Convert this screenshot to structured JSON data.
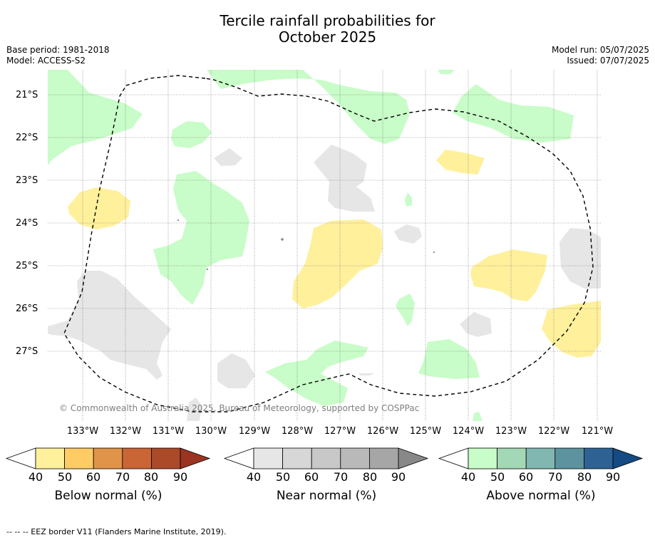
{
  "title_line1": "Tercile rainfall probabilities for",
  "title_line2": "October 2025",
  "meta_left": {
    "line1": "Base period: 1981-2018",
    "line2": "Model: ACCESS-S2"
  },
  "meta_right": {
    "line1": "Model run: 05/07/2025",
    "line2": "Issued: 07/07/2025"
  },
  "latitudes": [
    "21°S",
    "22°S",
    "23°S",
    "24°S",
    "25°S",
    "26°S",
    "27°S"
  ],
  "longitudes": [
    "133°W",
    "132°W",
    "131°W",
    "130°W",
    "129°W",
    "128°W",
    "127°W",
    "126°W",
    "125°W",
    "124°W",
    "123°W",
    "122°W",
    "121°W"
  ],
  "copyright": "© Commonwealth of Australia 2025, Bureau of Meteorology, supported by COSPPac",
  "colorbars": [
    {
      "label": "Below normal (%)",
      "ticks": [
        "40",
        "50",
        "60",
        "70",
        "80",
        "90"
      ],
      "colors": [
        "#fff09c",
        "#fecb65",
        "#e0944a",
        "#ca6536",
        "#ab4a29",
        "#9b3422"
      ]
    },
    {
      "label": "Near normal (%)",
      "ticks": [
        "40",
        "50",
        "60",
        "70",
        "80",
        "90"
      ],
      "colors": [
        "#e6e6e6",
        "#d7d7d7",
        "#c8c8c8",
        "#b9b9b9",
        "#a6a6a6",
        "#888888"
      ]
    },
    {
      "label": "Above normal (%)",
      "ticks": [
        "40",
        "50",
        "60",
        "70",
        "80",
        "90"
      ],
      "colors": [
        "#c8fcc8",
        "#a3d8b6",
        "#80b7b0",
        "#5c939e",
        "#2e6294",
        "#154a82"
      ]
    }
  ],
  "footnote": "--  --  -- EEZ border V11 (Flanders Marine Institute, 2019)."
}
